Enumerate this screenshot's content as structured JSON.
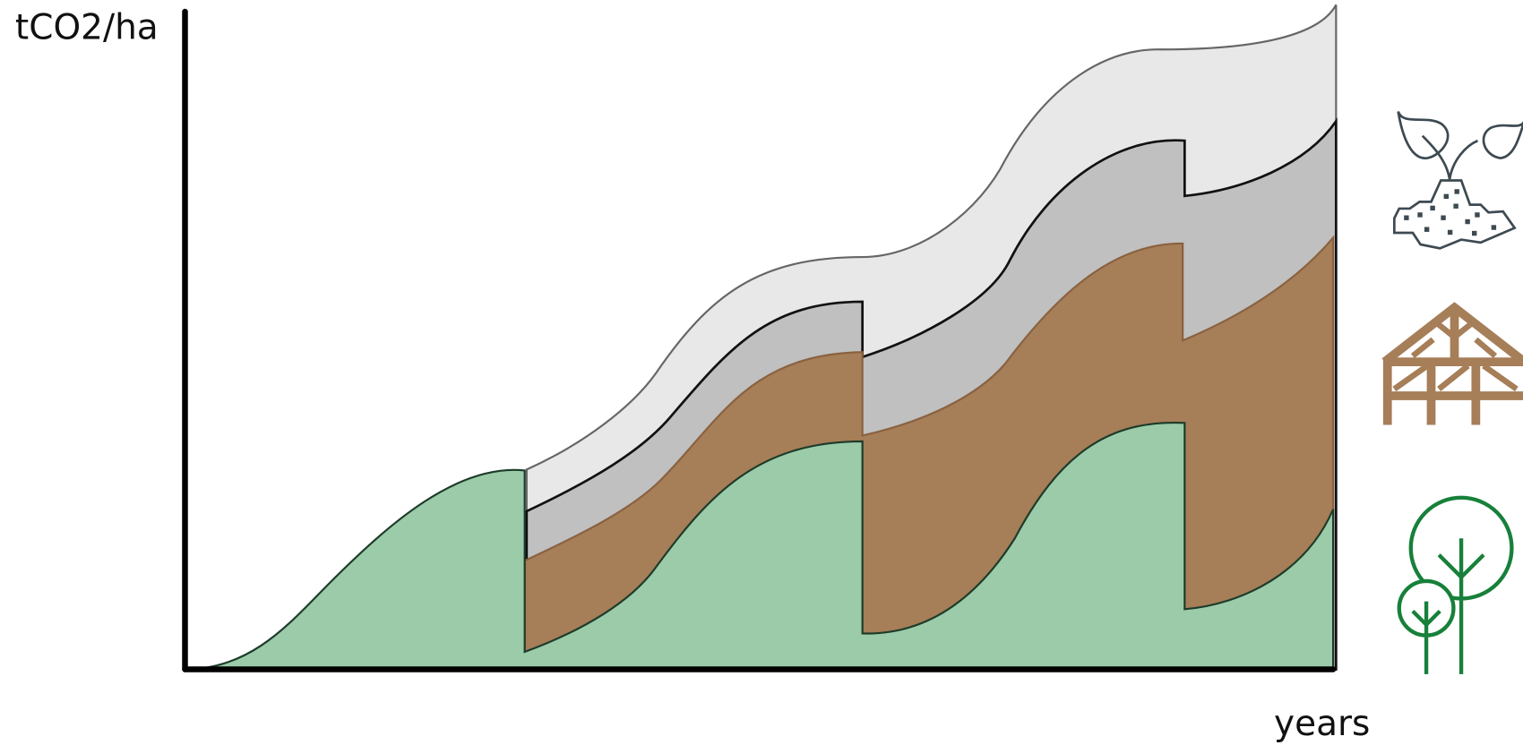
{
  "y_axis_label": "tCO2/ha",
  "x_axis_label": "years"
}
